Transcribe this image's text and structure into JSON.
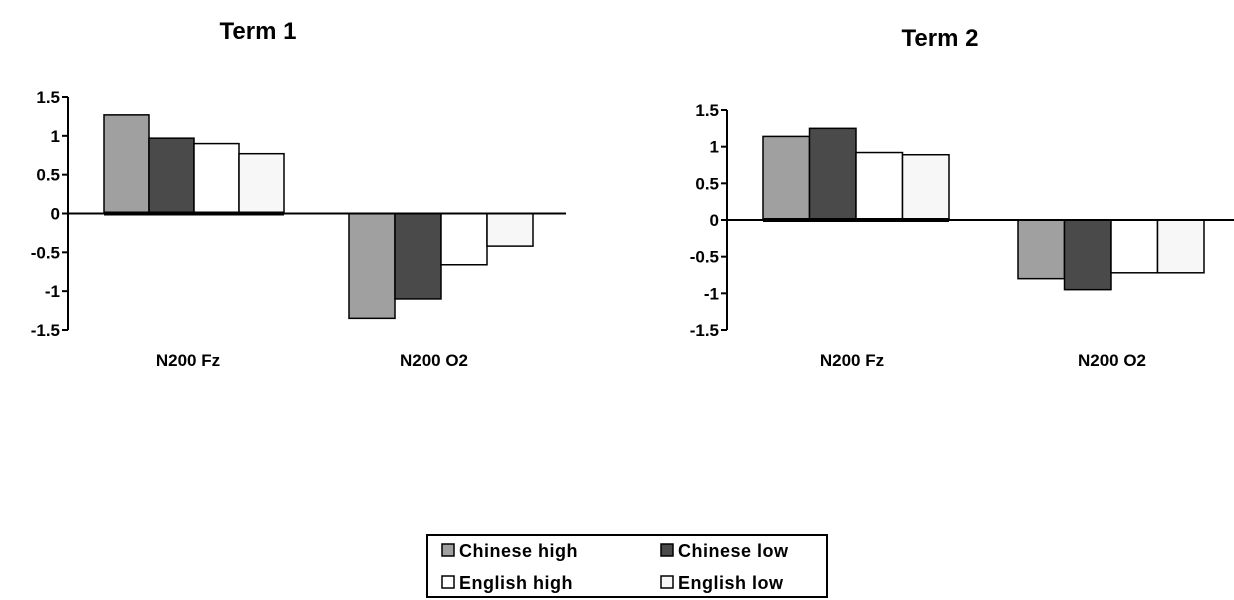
{
  "chart_data": [
    {
      "type": "bar",
      "title": "Term 1",
      "categories": [
        "N200 Fz",
        "N200 O2"
      ],
      "series": [
        {
          "name": "Chinese high",
          "values": [
            1.27,
            -1.35
          ]
        },
        {
          "name": "Chinese low",
          "values": [
            0.97,
            -1.1
          ]
        },
        {
          "name": "English high",
          "values": [
            0.9,
            -0.66
          ]
        },
        {
          "name": "English low",
          "values": [
            0.77,
            -0.42
          ]
        }
      ],
      "ylim": [
        -1.5,
        1.5
      ],
      "yticks": [
        "1.5",
        "1",
        "0.5",
        "0",
        "-0.5",
        "-1",
        "-1.5"
      ],
      "xlabel": "",
      "ylabel": "",
      "grid": false
    },
    {
      "type": "bar",
      "title": "Term 2",
      "categories": [
        "N200 Fz",
        "N200 O2"
      ],
      "series": [
        {
          "name": "Chinese high",
          "values": [
            1.14,
            -0.8
          ]
        },
        {
          "name": "Chinese low",
          "values": [
            1.25,
            -0.95
          ]
        },
        {
          "name": "English high",
          "values": [
            0.92,
            -0.72
          ]
        },
        {
          "name": "English low",
          "values": [
            0.89,
            -0.72
          ]
        }
      ],
      "ylim": [
        -1.5,
        1.5
      ],
      "yticks": [
        "1.5",
        "1",
        "0.5",
        "0",
        "-0.5",
        "-1",
        "-1.5"
      ],
      "xlabel": "",
      "ylabel": "",
      "grid": false
    }
  ],
  "legend": {
    "placement": "bottom-center",
    "items": [
      {
        "label": "Chinese high",
        "color": "#a0a0a0"
      },
      {
        "label": "Chinese low",
        "color": "#4a4a4a"
      },
      {
        "label": "English high",
        "color": "#ffffff"
      },
      {
        "label": "English low",
        "color": "#f7f7f7"
      }
    ]
  },
  "colors": {
    "chinese_high": "#a0a0a0",
    "chinese_low": "#4a4a4a",
    "english_high": "#ffffff",
    "english_low": "#f7f7f7",
    "stroke": "#000000"
  }
}
